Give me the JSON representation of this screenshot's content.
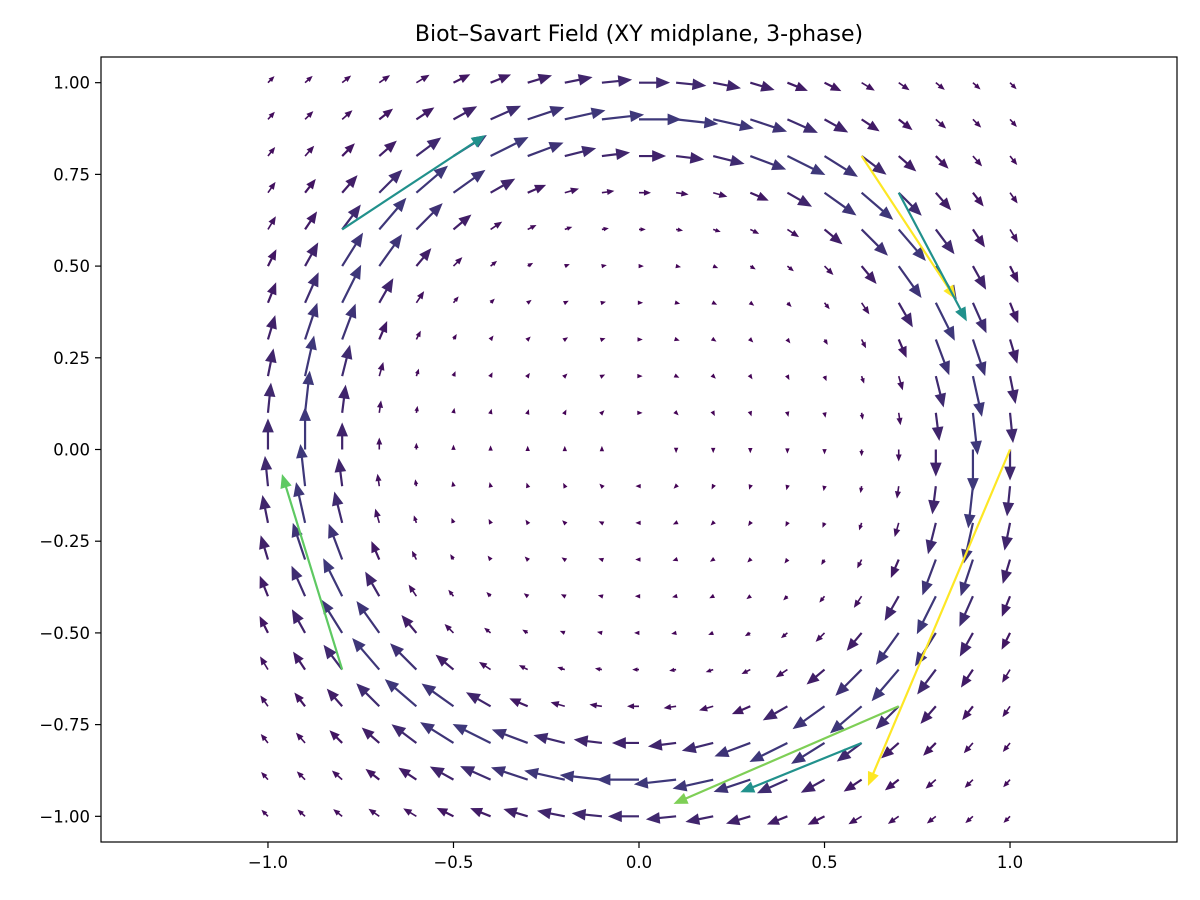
{
  "chart_data": {
    "type": "quiver",
    "title": "Biot–Savart Field (XY midplane, 3-phase)",
    "xlabel": "",
    "ylabel": "",
    "xlim": [
      -1.45,
      1.45
    ],
    "ylim": [
      -1.07,
      1.07
    ],
    "grid": false,
    "xticks": [
      -1.0,
      -0.5,
      0.0,
      0.5,
      1.0
    ],
    "yticks": [
      -1.0,
      -0.75,
      -0.5,
      -0.25,
      0.0,
      0.25,
      0.5,
      0.75,
      1.0
    ],
    "xtick_labels": [
      "−1.0",
      "−0.5",
      "0.0",
      "0.5",
      "1.0"
    ],
    "ytick_labels": [
      "−1.00",
      "−0.75",
      "−0.50",
      "−0.25",
      "0.00",
      "0.25",
      "0.50",
      "0.75",
      "1.00"
    ],
    "colormap": "viridis",
    "colormap_stops": [
      "#440154",
      "#3b528b",
      "#21918c",
      "#5ec962",
      "#fde725"
    ],
    "grid_points": {
      "x_start": -1.0,
      "x_end": 1.0,
      "y_start": -1.0,
      "y_end": 1.0,
      "n": 21
    },
    "field_model": {
      "center": [
        0.0,
        0.0
      ],
      "radius": 0.88,
      "rotation": "clockwise",
      "core_scale": 0.05
    },
    "highlighted_vectors": [
      {
        "x": 0.6,
        "y": 0.8,
        "u": 0.25,
        "v": -0.38,
        "magnitude": 1.0
      },
      {
        "x": 1.0,
        "y": 0.0,
        "u": -0.38,
        "v": -0.9,
        "magnitude": 1.0
      },
      {
        "x": 0.7,
        "y": -0.7,
        "u": -0.6,
        "v": -0.26,
        "magnitude": 0.8
      },
      {
        "x": -0.8,
        "y": -0.6,
        "u": -0.16,
        "v": 0.52,
        "magnitude": 0.75
      },
      {
        "x": -0.8,
        "y": 0.6,
        "u": 0.38,
        "v": 0.25,
        "magnitude": 0.5
      },
      {
        "x": 0.7,
        "y": 0.7,
        "u": 0.18,
        "v": -0.34,
        "magnitude": 0.5
      },
      {
        "x": 0.6,
        "y": -0.8,
        "u": -0.32,
        "v": -0.13,
        "magnitude": 0.5
      }
    ]
  }
}
